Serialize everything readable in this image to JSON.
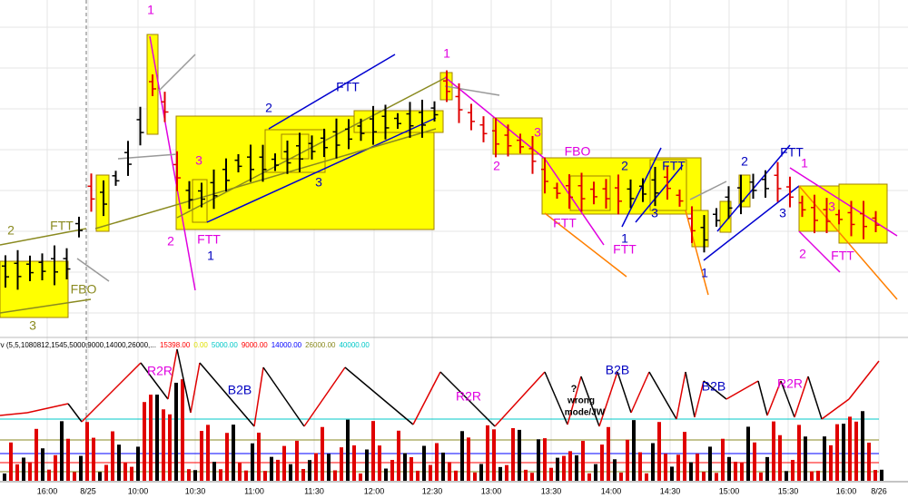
{
  "indicator_header": {
    "name": "rv (5,5,1080812,1545,5000,9000,14000,26000,...",
    "levels": [
      {
        "label": "15398.00",
        "color": "#ff0000"
      },
      {
        "label": "0.00",
        "color": "#e0e000"
      },
      {
        "label": "5000.00",
        "color": "#00c8c8"
      },
      {
        "label": "9000.00",
        "color": "#ff0000"
      },
      {
        "label": "14000.00",
        "color": "#0000ff"
      },
      {
        "label": "26000.00",
        "color": "#8a8a20"
      },
      {
        "label": "40000.00",
        "color": "#00c8c8"
      }
    ]
  },
  "x_axis_labels": [
    "16:00",
    "8/25",
    "10:00",
    "10:30",
    "11:00",
    "11:30",
    "12:00",
    "12:30",
    "13:00",
    "13:30",
    "14:00",
    "14:30",
    "15:00",
    "15:30",
    "16:00",
    "8/26"
  ],
  "annotations": [
    {
      "text": "1",
      "color": "#e000e0"
    },
    {
      "text": "2",
      "color": "#8a8a20"
    },
    {
      "text": "FTT",
      "color": "#8a8a20"
    },
    {
      "text": "FBO",
      "color": "#8a8a20"
    },
    {
      "text": "3",
      "color": "#8a8a20"
    },
    {
      "text": "3",
      "color": "#e000e0"
    },
    {
      "text": "2",
      "color": "#e000e0"
    },
    {
      "text": "FTT",
      "color": "#e000e0"
    },
    {
      "text": "1",
      "color": "#0000c0"
    },
    {
      "text": "2",
      "color": "#0000c0"
    },
    {
      "text": "FTT",
      "color": "#0000c0"
    },
    {
      "text": "3",
      "color": "#0000c0"
    },
    {
      "text": "1",
      "color": "#e000e0"
    },
    {
      "text": "3",
      "color": "#e000e0"
    },
    {
      "text": "FBO",
      "color": "#e000e0"
    },
    {
      "text": "2",
      "color": "#e000e0"
    },
    {
      "text": "FTT",
      "color": "#e000e0"
    },
    {
      "text": "2",
      "color": "#0000c0"
    },
    {
      "text": "FTT",
      "color": "#0000c0"
    },
    {
      "text": "3",
      "color": "#0000c0"
    },
    {
      "text": "1",
      "color": "#0000c0"
    },
    {
      "text": "FTT",
      "color": "#e000e0"
    },
    {
      "text": "1",
      "color": "#0000c0"
    },
    {
      "text": "2",
      "color": "#0000c0"
    },
    {
      "text": "FTT",
      "color": "#0000c0"
    },
    {
      "text": "1",
      "color": "#e000e0"
    },
    {
      "text": "3",
      "color": "#0000c0"
    },
    {
      "text": "3",
      "color": "#e000e0"
    },
    {
      "text": "2",
      "color": "#e000e0"
    },
    {
      "text": "FTT",
      "color": "#e000e0"
    },
    {
      "text": "R2R",
      "color": "#e000e0"
    },
    {
      "text": "B2B",
      "color": "#0000c0"
    },
    {
      "text": "R2R",
      "color": "#e000e0"
    },
    {
      "text": "?",
      "color": "#000000"
    },
    {
      "text": "wrong",
      "color": "#000000"
    },
    {
      "text": "mode/JW",
      "color": "#000000"
    },
    {
      "text": "B2B",
      "color": "#0000c0"
    },
    {
      "text": "B2B",
      "color": "#0000c0"
    },
    {
      "text": "R2R",
      "color": "#e000e0"
    }
  ]
}
